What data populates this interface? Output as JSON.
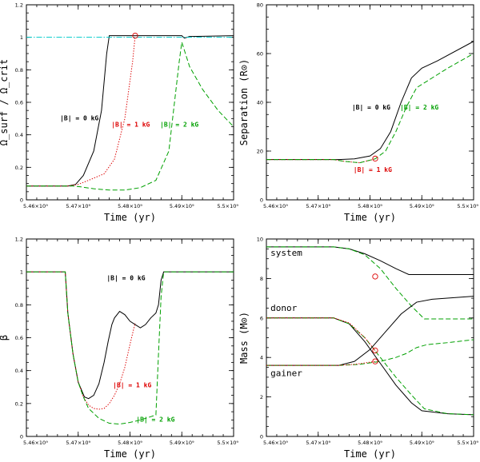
{
  "colors": {
    "zero": "#000000",
    "one": "#dd0000",
    "two": "#00a000",
    "crit": "#00cccc"
  },
  "chart_data": [
    {
      "type": "line",
      "id": "omega",
      "xlabel": "Time (yr)",
      "ylabel": "Ω_surf / Ω_crit",
      "xlim": [
        5460000000.0,
        5500000000.0
      ],
      "ylim": [
        0,
        1.2
      ],
      "xticks": [
        "5.46×10⁹",
        "5.47×10⁹",
        "5.48×10⁹",
        "5.49×10⁹",
        "5.5×10⁹"
      ],
      "yticks": [
        "0",
        "0.2",
        "0.4",
        "0.6",
        "0.8",
        "1",
        "1.2"
      ],
      "series": [
        {
          "name": "|B| = 0 kG",
          "color": "zero",
          "style": "solid",
          "x": [
            5460000000.0,
            5468000000.0,
            5469500000.0,
            5471000000.0,
            5473000000.0,
            5474500000.0,
            5475500000.0,
            5476000000.0,
            5490000000.0,
            5490500000.0,
            5491500000.0,
            5500000000.0
          ],
          "y": [
            0.085,
            0.085,
            0.095,
            0.15,
            0.3,
            0.55,
            0.9,
            1.01,
            1.01,
            0.995,
            1.005,
            1.01
          ]
        },
        {
          "name": "|B| = 1 kG",
          "color": "one",
          "style": "dotted",
          "x": [
            5460000000.0,
            5468000000.0,
            5470000000.0,
            5472000000.0,
            5475000000.0,
            5477000000.0,
            5479000000.0,
            5480500000.0,
            5481000000.0
          ],
          "y": [
            0.085,
            0.085,
            0.095,
            0.12,
            0.16,
            0.25,
            0.5,
            0.85,
            1.01
          ]
        },
        {
          "name": "|B| = 2 kG",
          "color": "two",
          "style": "dashed",
          "x": [
            5460000000.0,
            5469000000.0,
            5470500000.0,
            5473000000.0,
            5476000000.0,
            5479000000.0,
            5482000000.0,
            5485000000.0,
            5487500000.0,
            5489500000.0,
            5490000000.0,
            5491500000.0,
            5494000000.0,
            5497000000.0,
            5500000000.0
          ],
          "y": [
            0.085,
            0.085,
            0.08,
            0.068,
            0.06,
            0.06,
            0.075,
            0.12,
            0.3,
            0.85,
            0.97,
            0.82,
            0.68,
            0.55,
            0.45
          ]
        },
        {
          "name": "Ω crit",
          "color": "crit",
          "style": "dashdot",
          "x": [
            5460000000.0,
            5500000000.0
          ],
          "y": [
            1.0,
            1.0
          ]
        }
      ],
      "markers": [
        {
          "x": 5481000000.0,
          "y": 1.01
        }
      ],
      "annotations": [
        {
          "text": "|B| = 0 kG",
          "color": "zero",
          "x": 5466500000.0,
          "y": 0.49
        },
        {
          "text": "|B| = 1 kG",
          "color": "one",
          "x": 5476400000.0,
          "y": 0.45
        },
        {
          "text": "|B| = 2 kG",
          "color": "two",
          "x": 5485800000.0,
          "y": 0.45
        }
      ]
    },
    {
      "type": "line",
      "id": "separation",
      "xlabel": "Time (yr)",
      "ylabel": "Separation (R⊙)",
      "xlim": [
        5460000000.0,
        5500000000.0
      ],
      "ylim": [
        0,
        80
      ],
      "xticks": [
        "5.46×10⁹",
        "5.47×10⁹",
        "5.48×10⁹",
        "5.49×10⁹",
        "5.5×10⁹"
      ],
      "yticks": [
        "0",
        "20",
        "40",
        "60",
        "80"
      ],
      "series": [
        {
          "name": "|B| = 0 kG",
          "color": "zero",
          "style": "solid",
          "x": [
            5460000000.0,
            5474000000.0,
            5477000000.0,
            5480000000.0,
            5482000000.0,
            5484000000.0,
            5486000000.0,
            5488000000.0,
            5490000000.0,
            5493000000.0,
            5500000000.0
          ],
          "y": [
            16.5,
            16.5,
            16.8,
            18,
            21,
            28,
            40,
            50,
            54,
            57,
            65
          ]
        },
        {
          "name": "|B| = 1 kG",
          "color": "one",
          "style": "dotted",
          "x": [
            5460000000.0,
            5473000000.0,
            5475000000.0,
            5478000000.0,
            5480500000.0,
            5481000000.0
          ],
          "y": [
            16.5,
            16.5,
            15.8,
            15.2,
            16.5,
            17
          ]
        },
        {
          "name": "|B| = 2 kG",
          "color": "two",
          "style": "dashed",
          "x": [
            5460000000.0,
            5473000000.0,
            5475000000.0,
            5478000000.0,
            5481000000.0,
            5483000000.0,
            5485000000.0,
            5487000000.0,
            5489000000.0,
            5492000000.0,
            5495000000.0,
            5500000000.0
          ],
          "y": [
            16.5,
            16.5,
            15.8,
            15.2,
            16.8,
            20,
            28,
            38,
            46,
            50,
            54,
            60
          ]
        }
      ],
      "markers": [
        {
          "x": 5481000000.0,
          "y": 16.9
        }
      ],
      "annotations": [
        {
          "text": "|B| = 0 kG",
          "color": "zero",
          "x": 5476500000.0,
          "y": 37
        },
        {
          "text": "|B| = 1 kG",
          "color": "one",
          "x": 5476800000.0,
          "y": 11.5
        },
        {
          "text": "|B| = 2 kG",
          "color": "two",
          "x": 5485800000.0,
          "y": 37
        }
      ]
    },
    {
      "type": "line",
      "id": "beta",
      "xlabel": "Time (yr)",
      "ylabel": "β",
      "xlim": [
        5460000000.0,
        5500000000.0
      ],
      "ylim": [
        0,
        1.2
      ],
      "xticks": [
        "5.46×10⁹",
        "5.47×10⁹",
        "5.48×10⁹",
        "5.49×10⁹",
        "5.5×10⁹"
      ],
      "yticks": [
        "0",
        "0.2",
        "0.4",
        "0.6",
        "0.8",
        "1",
        "1.2"
      ],
      "series": [
        {
          "name": "|B| = 0 kG",
          "color": "zero",
          "style": "solid",
          "x": [
            5460000000.0,
            5467500000.0,
            5468000000.0,
            5469000000.0,
            5470000000.0,
            5471200000.0,
            5472000000.0,
            5473000000.0,
            5474000000.0,
            5475000000.0,
            5475800000.0,
            5476500000.0,
            5477000000.0,
            5478000000.0,
            5479000000.0,
            5480000000.0,
            5481000000.0,
            5482000000.0,
            5483000000.0,
            5484000000.0,
            5485000000.0,
            5485500000.0,
            5486000000.0,
            5486500000.0,
            5500000000.0
          ],
          "y": [
            1.0,
            1.0,
            0.75,
            0.5,
            0.33,
            0.24,
            0.23,
            0.25,
            0.32,
            0.45,
            0.58,
            0.68,
            0.72,
            0.76,
            0.74,
            0.7,
            0.68,
            0.66,
            0.68,
            0.72,
            0.75,
            0.8,
            0.95,
            1.0,
            1.0
          ]
        },
        {
          "name": "|B| = 1 kG",
          "color": "one",
          "style": "dotted",
          "x": [
            5460000000.0,
            5467500000.0,
            5468000000.0,
            5469000000.0,
            5470000000.0,
            5471000000.0,
            5472000000.0,
            5473000000.0,
            5474000000.0,
            5475000000.0,
            5476000000.0,
            5477000000.0,
            5478000000.0,
            5479000000.0,
            5480000000.0,
            5481000000.0
          ],
          "y": [
            1.0,
            1.0,
            0.75,
            0.5,
            0.33,
            0.24,
            0.19,
            0.17,
            0.165,
            0.17,
            0.2,
            0.25,
            0.32,
            0.42,
            0.56,
            0.69
          ]
        },
        {
          "name": "|B| = 2 kG",
          "color": "two",
          "style": "dashed",
          "x": [
            5460000000.0,
            5467500000.0,
            5468000000.0,
            5469000000.0,
            5470000000.0,
            5471000000.0,
            5472000000.0,
            5474000000.0,
            5476000000.0,
            5478000000.0,
            5480000000.0,
            5482000000.0,
            5484000000.0,
            5485000000.0,
            5485500000.0,
            5486000000.0,
            5486500000.0,
            5500000000.0
          ],
          "y": [
            1.0,
            1.0,
            0.75,
            0.5,
            0.33,
            0.24,
            0.17,
            0.11,
            0.08,
            0.075,
            0.085,
            0.1,
            0.12,
            0.13,
            0.5,
            0.85,
            1.0,
            1.0
          ]
        }
      ],
      "markers": [],
      "annotations": [
        {
          "text": "|B| = 0 kG",
          "color": "zero",
          "x": 5475500000.0,
          "y": 0.95
        },
        {
          "text": "|B| = 1 kG",
          "color": "one",
          "x": 5476700000.0,
          "y": 0.3
        },
        {
          "text": "|B| = 2 kG",
          "color": "two",
          "x": 5481200000.0,
          "y": 0.09
        }
      ]
    },
    {
      "type": "line",
      "id": "mass",
      "xlabel": "Time (yr)",
      "ylabel": "Mass (M⊙)",
      "xlim": [
        5460000000.0,
        5500000000.0
      ],
      "ylim": [
        0,
        10
      ],
      "xticks": [
        "5.46×10⁹",
        "5.47×10⁹",
        "5.48×10⁹",
        "5.49×10⁹",
        "5.5×10⁹"
      ],
      "yticks": [
        "0",
        "2",
        "4",
        "6",
        "8",
        "10"
      ],
      "series": [
        {
          "name": "system |B| = 0 kG",
          "color": "zero",
          "style": "solid",
          "x": [
            5460000000.0,
            5473000000.0,
            5476000000.0,
            5479000000.0,
            5482000000.0,
            5485000000.0,
            5487500000.0,
            5500000000.0
          ],
          "y": [
            9.6,
            9.6,
            9.5,
            9.25,
            8.9,
            8.5,
            8.2,
            8.2
          ]
        },
        {
          "name": "system |B| = 2 kG",
          "color": "two",
          "style": "dashed",
          "x": [
            5460000000.0,
            5473000000.0,
            5476000000.0,
            5479000000.0,
            5482000000.0,
            5485000000.0,
            5488000000.0,
            5490500000.0,
            5500000000.0
          ],
          "y": [
            9.6,
            9.6,
            9.5,
            9.2,
            8.5,
            7.5,
            6.6,
            5.95,
            5.95
          ]
        },
        {
          "name": "donor |B| = 0 kG",
          "color": "zero",
          "style": "solid",
          "x": [
            5460000000.0,
            5473000000.0,
            5476000000.0,
            5479000000.0,
            5482000000.0,
            5485000000.0,
            5488000000.0,
            5490000000.0,
            5495000000.0,
            5500000000.0
          ],
          "y": [
            6.0,
            6.0,
            5.7,
            4.8,
            3.7,
            2.6,
            1.7,
            1.3,
            1.15,
            1.1
          ]
        },
        {
          "name": "donor |B| = 2 kG",
          "color": "two",
          "style": "dashed",
          "x": [
            5460000000.0,
            5473000000.0,
            5476000000.0,
            5479000000.0,
            5482000000.0,
            5485000000.0,
            5488000000.0,
            5490500000.0,
            5495000000.0,
            5500000000.0
          ],
          "y": [
            6.0,
            6.0,
            5.7,
            5.0,
            4.0,
            3.0,
            2.1,
            1.4,
            1.15,
            1.1
          ]
        },
        {
          "name": "gainer |B| = 0 kG",
          "color": "zero",
          "style": "solid",
          "x": [
            5460000000.0,
            5474000000.0,
            5477000000.0,
            5480000000.0,
            5483000000.0,
            5486000000.0,
            5489000000.0,
            5492000000.0,
            5500000000.0
          ],
          "y": [
            3.6,
            3.6,
            3.8,
            4.4,
            5.3,
            6.2,
            6.8,
            6.95,
            7.1
          ]
        },
        {
          "name": "gainer |B| = 2 kG",
          "color": "two",
          "style": "dashed",
          "x": [
            5460000000.0,
            5474000000.0,
            5478000000.0,
            5482000000.0,
            5485000000.0,
            5487000000.0,
            5489000000.0,
            5491000000.0,
            5495000000.0,
            5500000000.0
          ],
          "y": [
            3.6,
            3.6,
            3.65,
            3.8,
            4.0,
            4.2,
            4.5,
            4.65,
            4.75,
            4.9
          ]
        },
        {
          "name": "donor |B| = 1 kG",
          "color": "one",
          "style": "dotted",
          "x": [
            5460000000.0,
            5473000000.0,
            5476000000.0,
            5479000000.0,
            5481000000.0
          ],
          "y": [
            6.0,
            6.0,
            5.75,
            5.0,
            4.35
          ]
        },
        {
          "name": "gainer |B| = 1 kG",
          "color": "one",
          "style": "dotted",
          "x": [
            5460000000.0,
            5474000000.0,
            5477000000.0,
            5479000000.0,
            5481000000.0
          ],
          "y": [
            3.6,
            3.6,
            3.65,
            3.72,
            3.8
          ]
        }
      ],
      "markers": [
        {
          "x": 5481000000.0,
          "y": 8.1
        },
        {
          "x": 5481000000.0,
          "y": 4.35
        },
        {
          "x": 5481000000.0,
          "y": 3.8
        }
      ],
      "annotations": [
        {
          "text": "system",
          "color": "zero",
          "x": 5460800000.0,
          "y": 9.15
        },
        {
          "text": "donor",
          "color": "zero",
          "x": 5460800000.0,
          "y": 6.35
        },
        {
          "text": "gainer",
          "color": "zero",
          "x": 5460800000.0,
          "y": 3.05
        }
      ]
    }
  ]
}
